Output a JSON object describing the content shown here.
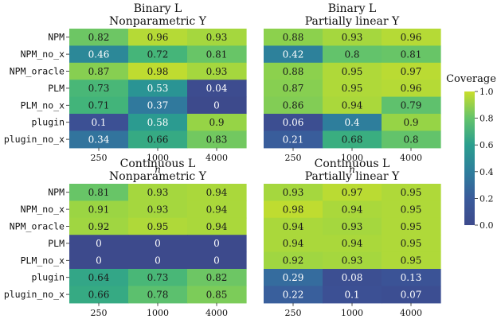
{
  "chart_data": {
    "type": "heatmap",
    "colorbar": {
      "title": "Coverage",
      "range": [
        0.0,
        1.0
      ],
      "ticks": [
        "0.0",
        "0.2",
        "0.4",
        "0.6",
        "0.8",
        "1.0"
      ]
    },
    "rows": [
      "NPM",
      "NPM_no_x",
      "NPM_oracle",
      "PLM",
      "PLM_no_x",
      "plugin",
      "plugin_no_x"
    ],
    "columns": [
      "250",
      "1000",
      "4000"
    ],
    "xlabel": "n",
    "panels": [
      {
        "title_line1": "Binary L",
        "title_line2": "Nonparametric Y",
        "values": [
          [
            0.82,
            0.96,
            0.93
          ],
          [
            0.46,
            0.72,
            0.81
          ],
          [
            0.87,
            0.98,
            0.93
          ],
          [
            0.73,
            0.53,
            0.04
          ],
          [
            0.71,
            0.37,
            0
          ],
          [
            0.1,
            0.58,
            0.9
          ],
          [
            0.34,
            0.66,
            0.83
          ]
        ]
      },
      {
        "title_line1": "Binary L",
        "title_line2": "Partially linear Y",
        "values": [
          [
            0.88,
            0.93,
            0.96
          ],
          [
            0.42,
            0.8,
            0.81
          ],
          [
            0.88,
            0.95,
            0.97
          ],
          [
            0.87,
            0.95,
            0.96
          ],
          [
            0.86,
            0.94,
            0.79
          ],
          [
            0.06,
            0.4,
            0.9
          ],
          [
            0.21,
            0.68,
            0.8
          ]
        ]
      },
      {
        "title_line1": "Continuous L",
        "title_line2": "Nonparametric Y",
        "values": [
          [
            0.81,
            0.93,
            0.94
          ],
          [
            0.91,
            0.93,
            0.94
          ],
          [
            0.92,
            0.95,
            0.94
          ],
          [
            0,
            0,
            0
          ],
          [
            0,
            0,
            0
          ],
          [
            0.64,
            0.73,
            0.82
          ],
          [
            0.66,
            0.78,
            0.85
          ]
        ]
      },
      {
        "title_line1": "Continuous L",
        "title_line2": "Partially linear Y",
        "values": [
          [
            0.93,
            0.97,
            0.95
          ],
          [
            0.98,
            0.94,
            0.95
          ],
          [
            0.94,
            0.93,
            0.95
          ],
          [
            0.94,
            0.94,
            0.95
          ],
          [
            0.92,
            0.93,
            0.95
          ],
          [
            0.29,
            0.08,
            0.13
          ],
          [
            0.22,
            0.1,
            0.07
          ]
        ]
      }
    ]
  }
}
